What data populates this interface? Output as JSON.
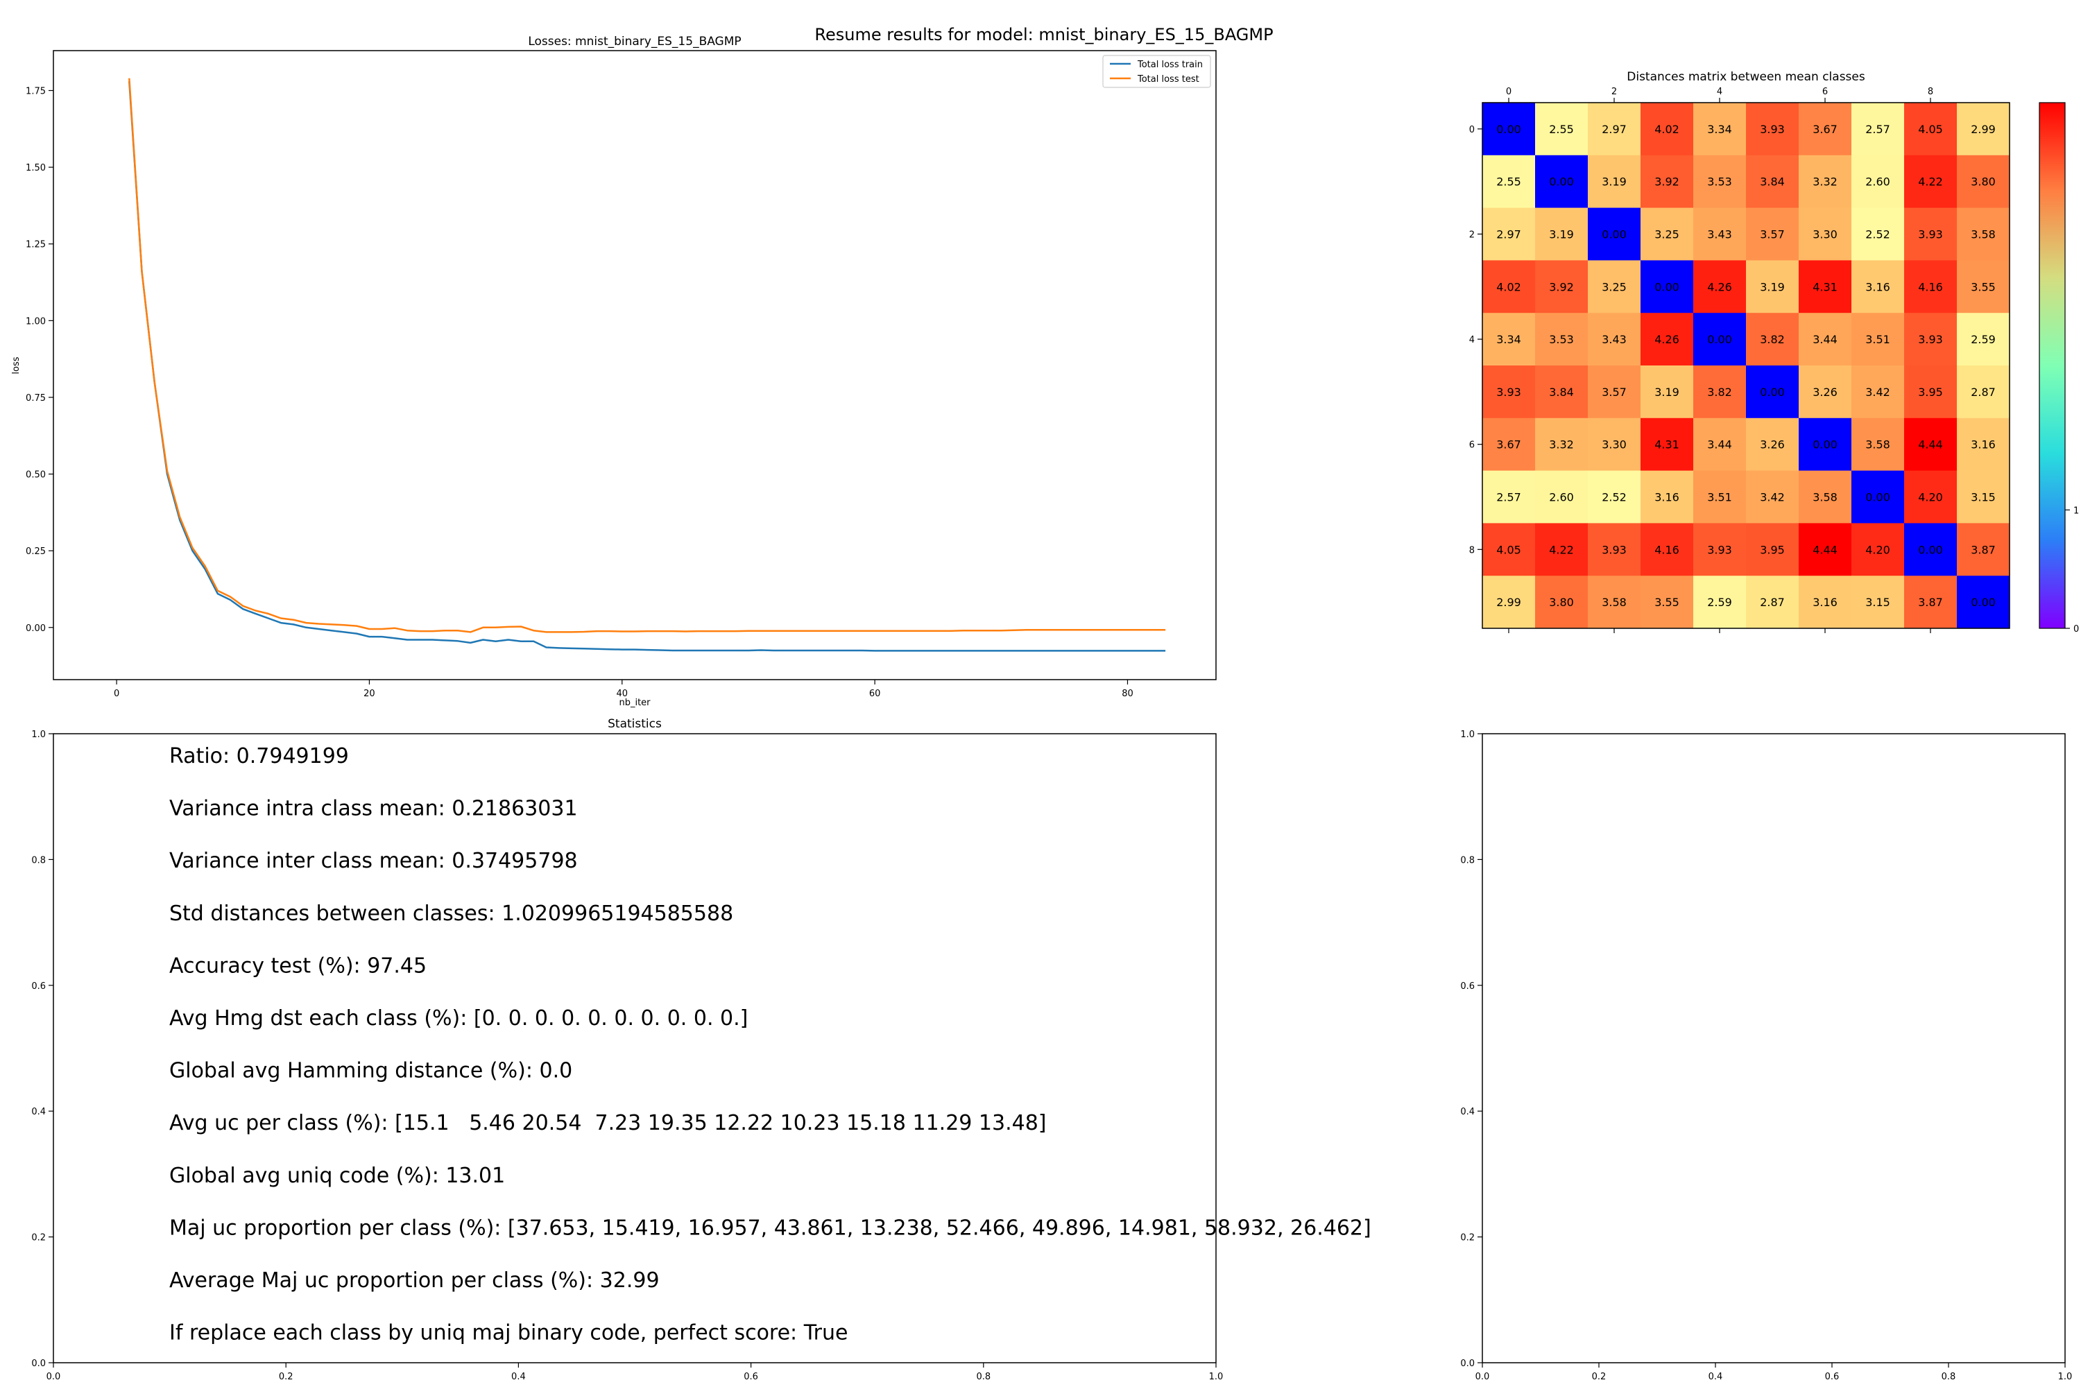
{
  "suptitle": "Resume results for model: mnist_binary_ES_15_BAGMP",
  "chart_data": [
    {
      "type": "line",
      "title": "Losses: mnist_binary_ES_15_BAGMP",
      "xlabel": "nb_iter",
      "ylabel": "loss",
      "xlim": [
        -5,
        87
      ],
      "ylim": [
        -0.17,
        1.88
      ],
      "xticks": [
        "0",
        "20",
        "40",
        "60",
        "80"
      ],
      "yticks": [
        "0.00",
        "0.25",
        "0.50",
        "0.75",
        "1.00",
        "1.25",
        "1.50",
        "1.75"
      ],
      "legend_position": "top-right",
      "x": [
        1,
        2,
        3,
        4,
        5,
        6,
        7,
        8,
        9,
        10,
        11,
        12,
        13,
        14,
        15,
        16,
        17,
        18,
        19,
        20,
        21,
        22,
        23,
        24,
        25,
        26,
        27,
        28,
        29,
        30,
        31,
        32,
        33,
        34,
        35,
        36,
        37,
        38,
        39,
        40,
        41,
        42,
        43,
        44,
        45,
        46,
        47,
        48,
        49,
        50,
        51,
        52,
        53,
        54,
        55,
        56,
        57,
        58,
        59,
        60,
        61,
        62,
        63,
        64,
        65,
        66,
        67,
        68,
        69,
        70,
        71,
        72,
        73,
        74,
        75,
        76,
        77,
        78,
        79,
        80,
        81,
        82,
        83
      ],
      "series": [
        {
          "name": "Total loss train",
          "color": "#1f77b4",
          "values": [
            1.78,
            1.16,
            0.8,
            0.5,
            0.35,
            0.25,
            0.19,
            0.11,
            0.09,
            0.06,
            0.045,
            0.03,
            0.015,
            0.01,
            0.0,
            -0.005,
            -0.01,
            -0.015,
            -0.02,
            -0.03,
            -0.03,
            -0.035,
            -0.04,
            -0.04,
            -0.04,
            -0.042,
            -0.044,
            -0.05,
            -0.04,
            -0.045,
            -0.04,
            -0.045,
            -0.045,
            -0.065,
            -0.067,
            -0.068,
            -0.069,
            -0.07,
            -0.071,
            -0.072,
            -0.072,
            -0.073,
            -0.074,
            -0.075,
            -0.075,
            -0.075,
            -0.075,
            -0.075,
            -0.075,
            -0.075,
            -0.074,
            -0.075,
            -0.075,
            -0.075,
            -0.075,
            -0.075,
            -0.075,
            -0.075,
            -0.075,
            -0.076,
            -0.076,
            -0.076,
            -0.076,
            -0.076,
            -0.076,
            -0.076,
            -0.076,
            -0.076,
            -0.076,
            -0.076,
            -0.076,
            -0.076,
            -0.076,
            -0.076,
            -0.076,
            -0.076,
            -0.076,
            -0.076,
            -0.076,
            -0.076,
            -0.076,
            -0.076,
            -0.076
          ]
        },
        {
          "name": "Total loss test",
          "color": "#ff7f0e",
          "values": [
            1.79,
            1.16,
            0.8,
            0.51,
            0.36,
            0.26,
            0.2,
            0.12,
            0.1,
            0.07,
            0.055,
            0.045,
            0.03,
            0.025,
            0.015,
            0.012,
            0.01,
            0.008,
            0.005,
            -0.005,
            -0.005,
            -0.002,
            -0.01,
            -0.012,
            -0.012,
            -0.01,
            -0.01,
            -0.015,
            0.0,
            0.0,
            0.002,
            0.003,
            -0.01,
            -0.015,
            -0.015,
            -0.015,
            -0.014,
            -0.012,
            -0.012,
            -0.013,
            -0.013,
            -0.012,
            -0.012,
            -0.012,
            -0.013,
            -0.012,
            -0.012,
            -0.012,
            -0.012,
            -0.011,
            -0.011,
            -0.011,
            -0.011,
            -0.011,
            -0.011,
            -0.011,
            -0.011,
            -0.011,
            -0.011,
            -0.011,
            -0.011,
            -0.011,
            -0.011,
            -0.011,
            -0.011,
            -0.011,
            -0.01,
            -0.01,
            -0.01,
            -0.01,
            -0.009,
            -0.008,
            -0.008,
            -0.008,
            -0.008,
            -0.008,
            -0.008,
            -0.008,
            -0.008,
            -0.008,
            -0.008,
            -0.008,
            -0.008
          ]
        }
      ]
    },
    {
      "type": "heatmap",
      "title": "Distances matrix between mean classes",
      "colormap": "rainbow",
      "vmin": 0,
      "vmax": 4.44,
      "xticks": [
        "0",
        "2",
        "4",
        "6",
        "8"
      ],
      "yticks": [
        "0",
        "2",
        "4",
        "6",
        "8"
      ],
      "colorbar_ticks": [
        "0",
        "1"
      ],
      "values": [
        [
          0.0,
          2.55,
          2.97,
          4.02,
          3.34,
          3.93,
          3.67,
          2.57,
          4.05,
          2.99
        ],
        [
          2.55,
          0.0,
          3.19,
          3.92,
          3.53,
          3.84,
          3.32,
          2.6,
          4.22,
          3.8
        ],
        [
          2.97,
          3.19,
          0.0,
          3.25,
          3.43,
          3.57,
          3.3,
          2.52,
          3.93,
          3.58
        ],
        [
          4.02,
          3.92,
          3.25,
          0.0,
          4.26,
          3.19,
          4.31,
          3.16,
          4.16,
          3.55
        ],
        [
          3.34,
          3.53,
          3.43,
          4.26,
          0.0,
          3.82,
          3.44,
          3.51,
          3.93,
          2.59
        ],
        [
          3.93,
          3.84,
          3.57,
          3.19,
          3.82,
          0.0,
          3.26,
          3.42,
          3.95,
          2.87
        ],
        [
          3.67,
          3.32,
          3.3,
          4.31,
          3.44,
          3.26,
          0.0,
          3.58,
          4.44,
          3.16
        ],
        [
          2.57,
          2.6,
          2.52,
          3.16,
          3.51,
          3.42,
          3.58,
          0.0,
          4.2,
          3.15
        ],
        [
          4.05,
          4.22,
          3.93,
          4.16,
          3.93,
          3.95,
          4.44,
          4.2,
          0.0,
          3.87
        ],
        [
          2.99,
          3.8,
          3.58,
          3.55,
          2.59,
          2.87,
          3.16,
          3.15,
          3.87,
          0.0
        ]
      ]
    }
  ],
  "stats_panel": {
    "title": "Statistics",
    "xticks": [
      "0.0",
      "0.2",
      "0.4",
      "0.6",
      "0.8",
      "1.0"
    ],
    "yticks": [
      "0.0",
      "0.2",
      "0.4",
      "0.6",
      "0.8",
      "1.0"
    ],
    "lines": [
      "Ratio: 0.7949199",
      "Variance intra class mean: 0.21863031",
      "Variance inter class mean: 0.37495798",
      "Std distances between classes: 1.0209965194585588",
      "Accuracy test (%): 97.45",
      "Avg Hmg dst each class (%): [0. 0. 0. 0. 0. 0. 0. 0. 0. 0.]",
      "Global avg Hamming distance (%): 0.0",
      "Avg uc per class (%): [15.1   5.46 20.54  7.23 19.35 12.22 10.23 15.18 11.29 13.48]",
      "Global avg uniq code (%): 13.01",
      "Maj uc proportion per class (%): [37.653, 15.419, 16.957, 43.861, 13.238, 52.466, 49.896, 14.981, 58.932, 26.462]",
      "Average Maj uc proportion per class (%): 32.99",
      "If replace each class by uniq maj binary code, perfect score: True"
    ]
  },
  "empty_panel": {
    "xticks": [
      "0.0",
      "0.2",
      "0.4",
      "0.6",
      "0.8",
      "1.0"
    ],
    "yticks": [
      "0.0",
      "0.2",
      "0.4",
      "0.6",
      "0.8",
      "1.0"
    ]
  }
}
